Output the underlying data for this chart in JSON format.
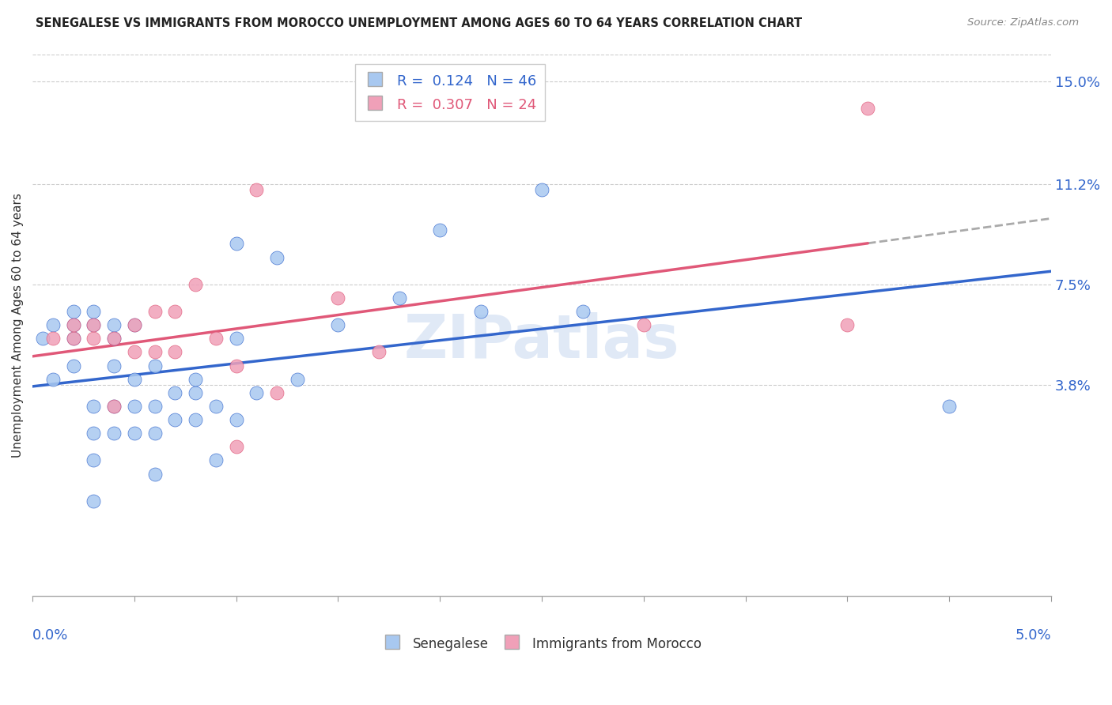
{
  "title": "SENEGALESE VS IMMIGRANTS FROM MOROCCO UNEMPLOYMENT AMONG AGES 60 TO 64 YEARS CORRELATION CHART",
  "source": "Source: ZipAtlas.com",
  "ylabel": "Unemployment Among Ages 60 to 64 years",
  "right_yticks": [
    0.0,
    0.038,
    0.075,
    0.112,
    0.15
  ],
  "right_yticklabels": [
    "",
    "3.8%",
    "7.5%",
    "11.2%",
    "15.0%"
  ],
  "xmin": 0.0,
  "xmax": 0.05,
  "ymin": -0.04,
  "ymax": 0.16,
  "senegalese_R": 0.124,
  "senegalese_N": 46,
  "morocco_R": 0.307,
  "morocco_N": 24,
  "senegalese_color": "#A8C8F0",
  "morocco_color": "#F0A0B8",
  "line_blue": "#3366CC",
  "line_pink": "#E05878",
  "dash_color": "#AAAAAA",
  "background_color": "#FFFFFF",
  "axis_label_color": "#3366CC",
  "title_color": "#222222",
  "source_color": "#888888",
  "watermark_text": "ZIPatlas",
  "watermark_color": "#C8D8F0",
  "senegalese_x": [
    0.0005,
    0.001,
    0.001,
    0.002,
    0.002,
    0.002,
    0.002,
    0.003,
    0.003,
    0.003,
    0.003,
    0.003,
    0.003,
    0.004,
    0.004,
    0.004,
    0.004,
    0.004,
    0.005,
    0.005,
    0.005,
    0.005,
    0.006,
    0.006,
    0.006,
    0.006,
    0.007,
    0.007,
    0.008,
    0.008,
    0.008,
    0.009,
    0.009,
    0.01,
    0.01,
    0.01,
    0.011,
    0.012,
    0.013,
    0.015,
    0.018,
    0.02,
    0.022,
    0.025,
    0.027,
    0.045
  ],
  "senegalese_y": [
    0.055,
    0.04,
    0.06,
    0.045,
    0.055,
    0.06,
    0.065,
    -0.005,
    0.01,
    0.02,
    0.03,
    0.06,
    0.065,
    0.02,
    0.03,
    0.045,
    0.055,
    0.06,
    0.02,
    0.03,
    0.04,
    0.06,
    0.005,
    0.02,
    0.03,
    0.045,
    0.025,
    0.035,
    0.025,
    0.035,
    0.04,
    0.01,
    0.03,
    0.025,
    0.055,
    0.09,
    0.035,
    0.085,
    0.04,
    0.06,
    0.07,
    0.095,
    0.065,
    0.11,
    0.065,
    0.03
  ],
  "morocco_x": [
    0.001,
    0.002,
    0.002,
    0.003,
    0.003,
    0.004,
    0.004,
    0.005,
    0.005,
    0.006,
    0.006,
    0.007,
    0.007,
    0.008,
    0.009,
    0.01,
    0.01,
    0.011,
    0.012,
    0.015,
    0.017,
    0.03,
    0.04,
    0.041
  ],
  "morocco_y": [
    0.055,
    0.055,
    0.06,
    0.055,
    0.06,
    0.03,
    0.055,
    0.05,
    0.06,
    0.05,
    0.065,
    0.05,
    0.065,
    0.075,
    0.055,
    0.015,
    0.045,
    0.11,
    0.035,
    0.07,
    0.05,
    0.06,
    0.06,
    0.14
  ]
}
